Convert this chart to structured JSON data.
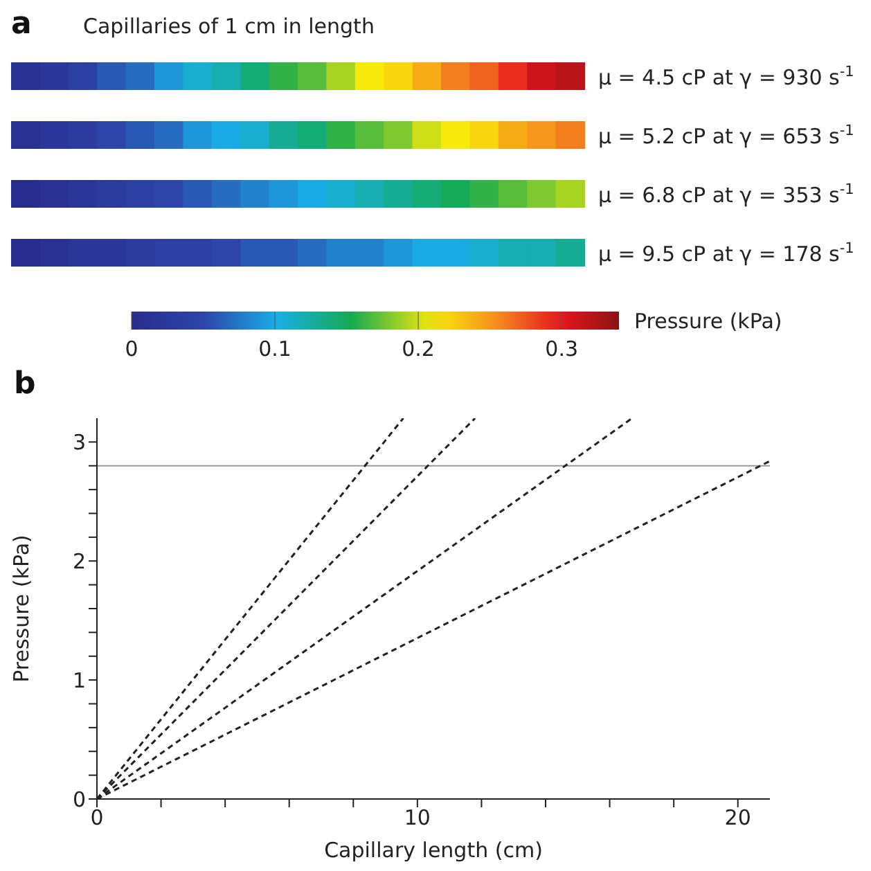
{
  "chart_data": [
    {
      "type": "heatmap",
      "title": "Capillaries of 1 cm in length",
      "annotations": [
        "a"
      ],
      "clabel": "Pressure (kPa)",
      "clim": [
        0,
        0.34
      ],
      "cticks": [
        0,
        0.1,
        0.2,
        0.3
      ],
      "categories": [
        null,
        null,
        null,
        null,
        null,
        null,
        null,
        null,
        null,
        null,
        null,
        null,
        null,
        null,
        null,
        null,
        null,
        null,
        null,
        null
      ],
      "y_categories": [
        "μ = 4.5 cP at γ = 930 s$^{-1}$",
        "μ = 5.2 cP at γ = 653 s$^{-1}$",
        "μ = 6.8 cP at γ = 353 s$^{-1}$",
        "μ = 9.5 cP at γ = 178 s$^{-1}$"
      ],
      "cells": [
        [
          0.01,
          0.02,
          0.04,
          0.06,
          0.07,
          0.09,
          0.11,
          0.12,
          0.14,
          0.16,
          0.17,
          0.19,
          0.21,
          0.22,
          0.24,
          0.26,
          0.27,
          0.29,
          0.31,
          0.32
        ],
        [
          0.01,
          0.02,
          0.03,
          0.05,
          0.06,
          0.07,
          0.09,
          0.1,
          0.11,
          0.13,
          0.14,
          0.16,
          0.17,
          0.18,
          0.2,
          0.21,
          0.22,
          0.24,
          0.25,
          0.26
        ],
        [
          0.0,
          0.01,
          0.02,
          0.03,
          0.04,
          0.05,
          0.06,
          0.07,
          0.08,
          0.09,
          0.1,
          0.11,
          0.12,
          0.13,
          0.14,
          0.15,
          0.16,
          0.17,
          0.18,
          0.19
        ],
        [
          0.0,
          0.01,
          0.02,
          0.02,
          0.03,
          0.04,
          0.04,
          0.05,
          0.06,
          0.06,
          0.07,
          0.08,
          0.08,
          0.09,
          0.1,
          0.1,
          0.11,
          0.12,
          0.12,
          0.13
        ]
      ]
    },
    {
      "type": "line",
      "annotations": [
        "b"
      ],
      "xlabel": "Capillary length (cm)",
      "ylabel": "Pressure (kPa)",
      "xlim": [
        0,
        21
      ],
      "ylim": [
        0,
        3.2
      ],
      "xticks": [
        0,
        {
          "value": 2,
          "label": null
        },
        {
          "value": 4,
          "label": null
        },
        {
          "value": 6,
          "label": null
        },
        {
          "value": 8,
          "label": null
        },
        10,
        {
          "value": 12,
          "label": null
        },
        {
          "value": 14,
          "label": null
        },
        {
          "value": 16,
          "label": null
        },
        {
          "value": 18,
          "label": null
        },
        20
      ],
      "yticks": [
        0,
        {
          "value": 0.2,
          "label": null
        },
        {
          "value": 0.4,
          "label": null
        },
        {
          "value": 0.6,
          "label": null
        },
        {
          "value": 0.8,
          "label": null
        },
        1,
        {
          "value": 1.2,
          "label": null
        },
        {
          "value": 1.4,
          "label": null
        },
        {
          "value": 1.6,
          "label": null
        },
        {
          "value": 1.8,
          "label": null
        },
        2,
        {
          "value": 2.2,
          "label": null
        },
        {
          "value": 2.4,
          "label": null
        },
        {
          "value": 2.6,
          "label": null
        },
        {
          "value": 2.8,
          "label": null
        },
        3
      ],
      "grid": false,
      "legend": false,
      "marker": "none",
      "line_style": "dashed",
      "ref_lines": [
        {
          "axis": "y",
          "value": 2.8,
          "label": null,
          "color": "#999999"
        }
      ],
      "series": [
        {
          "color": "#222222",
          "x": [
            0,
            9.56
          ],
          "values": [
            0,
            3.2
          ]
        },
        {
          "color": "#222222",
          "x": [
            0,
            11.8
          ],
          "values": [
            0,
            3.2
          ]
        },
        {
          "color": "#222222",
          "x": [
            0,
            16.7
          ],
          "values": [
            0,
            3.2
          ]
        },
        {
          "color": "#222222",
          "x": [
            0,
            21
          ],
          "values": [
            0,
            2.84
          ]
        }
      ]
    }
  ]
}
